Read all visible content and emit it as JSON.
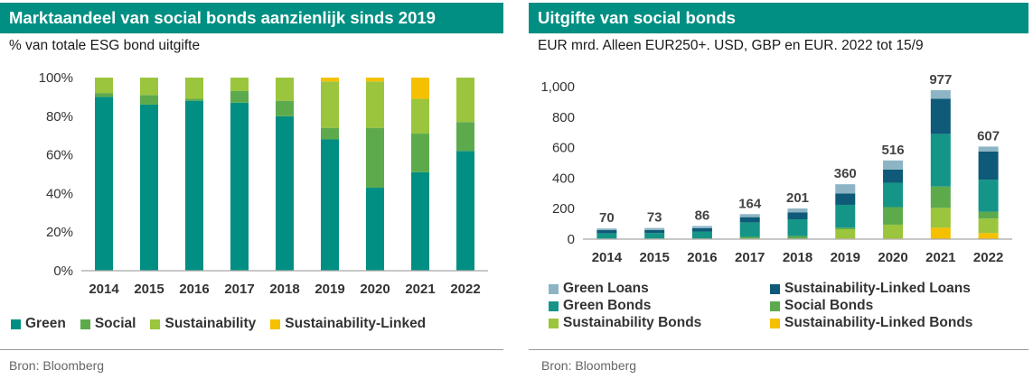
{
  "left": {
    "title": "Marktaandeel van social bonds aanzienlijk sinds 2019",
    "subtitle": "% van totale ESG bond uitgifte",
    "source": "Bron: Bloomberg",
    "legend": [
      "Green",
      "Social",
      "Sustainability",
      "Sustainability-Linked"
    ]
  },
  "right": {
    "title": "Uitgifte van social bonds",
    "subtitle": "EUR mrd. Alleen EUR250+. USD, GBP en EUR. 2022 tot 15/9",
    "source": "Bron: Bloomberg",
    "legend": [
      "Green Loans",
      "Sustainability-Linked Loans",
      "Green Bonds",
      "Social Bonds",
      "Sustainability Bonds",
      "Sustainability-Linked Bonds"
    ]
  },
  "colors": {
    "Green": "#008f82",
    "Social": "#5daa4d",
    "Sustainability": "#9bc53d",
    "Sustainability-Linked": "#f5c000",
    "Green Loans": "#8cb4c4",
    "Sustainability-Linked Loans": "#0e5a78",
    "Green Bonds": "#159587",
    "Social Bonds": "#5daa4d",
    "Sustainability Bonds": "#9bc53d",
    "Sustainability-Linked Bonds": "#f5c000"
  },
  "chart_data": [
    {
      "type": "bar",
      "stacked": true,
      "categories": [
        "2014",
        "2015",
        "2016",
        "2017",
        "2018",
        "2019",
        "2020",
        "2021",
        "2022"
      ],
      "series": [
        {
          "name": "Green",
          "values": [
            90,
            86,
            88,
            87,
            80,
            68,
            43,
            51,
            62
          ]
        },
        {
          "name": "Social",
          "values": [
            2,
            5,
            1,
            6,
            8,
            6,
            31,
            20,
            15
          ]
        },
        {
          "name": "Sustainability",
          "values": [
            8,
            9,
            11,
            7,
            12,
            24,
            24,
            18,
            23
          ]
        },
        {
          "name": "Sustainability-Linked",
          "values": [
            0,
            0,
            0,
            0,
            0,
            2,
            2,
            11,
            0
          ]
        }
      ],
      "yticks": [
        "0%",
        "20%",
        "40%",
        "60%",
        "80%",
        "100%"
      ],
      "ylim": [
        0,
        100
      ],
      "legend_position": "bottom"
    },
    {
      "type": "bar",
      "stacked": true,
      "categories": [
        "2014",
        "2015",
        "2016",
        "2017",
        "2018",
        "2019",
        "2020",
        "2021",
        "2022"
      ],
      "totals": [
        70,
        73,
        86,
        164,
        201,
        360,
        516,
        977,
        607
      ],
      "total_labels": [
        "70",
        "73",
        "86",
        "164",
        "201",
        "360",
        "516",
        "977",
        "607"
      ],
      "series": [
        {
          "name": "Sustainability-Linked Bonds",
          "values": [
            0,
            0,
            0,
            0,
            0,
            5,
            5,
            75,
            40
          ]
        },
        {
          "name": "Sustainability Bonds",
          "values": [
            2,
            3,
            2,
            5,
            5,
            60,
            90,
            130,
            95
          ]
        },
        {
          "name": "Social Bonds",
          "values": [
            2,
            2,
            3,
            10,
            15,
            10,
            115,
            140,
            45
          ]
        },
        {
          "name": "Green Bonds",
          "values": [
            35,
            35,
            45,
            95,
            110,
            150,
            160,
            345,
            210
          ]
        },
        {
          "name": "Sustainability-Linked Loans",
          "values": [
            20,
            20,
            22,
            34,
            46,
            75,
            86,
            230,
            185
          ]
        },
        {
          "name": "Green Loans",
          "values": [
            11,
            13,
            14,
            20,
            25,
            60,
            60,
            57,
            32
          ]
        }
      ],
      "yticks": [
        "0",
        "200",
        "400",
        "600",
        "800",
        "1,000"
      ],
      "ylim": [
        0,
        1000
      ],
      "legend_position": "bottom"
    }
  ]
}
